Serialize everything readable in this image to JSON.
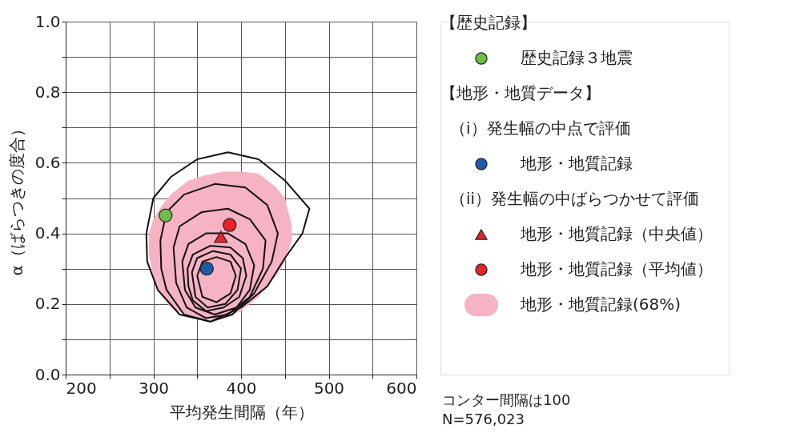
{
  "chart_data": {
    "type": "scatter",
    "xlabel": "平均発生間隔（年）",
    "ylabel": "α（ばらつきの度合）",
    "xlim": [
      200,
      600
    ],
    "ylim": [
      0,
      1.0
    ],
    "xticks": [
      200,
      {
        "value": 250,
        "label": null
      },
      300,
      {
        "value": 350,
        "label": null
      },
      400,
      {
        "value": 450,
        "label": null
      },
      500,
      {
        "value": 550,
        "label": null
      },
      600
    ],
    "yticks": [
      {
        "value": 0,
        "label": "0.0"
      },
      {
        "value": 0.1,
        "label": null
      },
      0.2,
      {
        "value": 0.3,
        "label": null
      },
      0.4,
      {
        "value": 0.5,
        "label": null
      },
      0.6,
      {
        "value": 0.7,
        "label": null
      },
      0.8,
      {
        "value": 0.9,
        "label": null
      },
      {
        "value": 1.0,
        "label": "1.0"
      }
    ],
    "grid": true,
    "legend": "right",
    "annotations": [
      "【歴史記録】",
      "【地形・地質データ】",
      "（i）発生幅の中点で評価",
      "（ii）発生幅の中ばらつかせて評価",
      "コンター間隔は100",
      "N=576,023"
    ],
    "series": [
      {
        "name": "歴史記録３地震",
        "type": "scatter",
        "marker": "circle",
        "color": "#6dbe45",
        "x": [
          314
        ],
        "values": [
          0.451
        ]
      },
      {
        "name": "地形・地質記録",
        "type": "scatter",
        "marker": "circle",
        "color": "#1f5aa6",
        "x": [
          361
        ],
        "values": [
          0.3
        ]
      },
      {
        "name": "地形・地質記録（中央値）",
        "type": "scatter",
        "marker": "triangle",
        "color": "#e8232a",
        "x": [
          377
        ],
        "values": [
          0.39
        ]
      },
      {
        "name": "地形・地質記録（平均値）",
        "type": "scatter",
        "marker": "circle",
        "color": "#e8232a",
        "x": [
          387
        ],
        "values": [
          0.424
        ]
      },
      {
        "name": "地形・地質記録(68%)",
        "type": "area",
        "color": "#f5b3c3",
        "x": [
          295,
          300,
          310,
          320,
          340,
          360,
          380,
          400,
          420,
          440,
          450,
          458
        ],
        "values": [
          null,
          null,
          null,
          null,
          null,
          null,
          null,
          null,
          null,
          null,
          null,
          null
        ],
        "upper": [
          0.4,
          0.44,
          0.48,
          0.51,
          0.55,
          0.565,
          0.575,
          0.575,
          0.57,
          0.53,
          0.5,
          0.42
        ],
        "lower": [
          0.34,
          0.27,
          0.22,
          0.19,
          0.165,
          0.155,
          0.16,
          0.18,
          0.22,
          0.28,
          0.32,
          0.38
        ]
      }
    ]
  }
}
